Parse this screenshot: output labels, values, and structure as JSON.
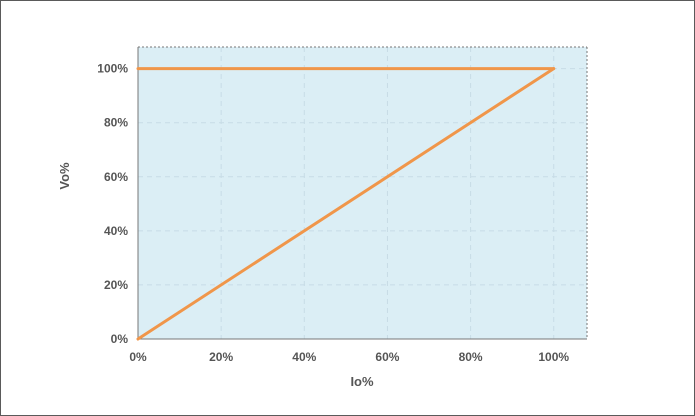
{
  "chart_data": {
    "type": "line",
    "title": "",
    "xlabel": "Io%",
    "ylabel": "Vo%",
    "xlim": [
      0,
      108
    ],
    "ylim": [
      0,
      108
    ],
    "x_ticks": [
      0,
      20,
      40,
      60,
      80,
      100
    ],
    "x_tick_labels": [
      "0%",
      "20%",
      "40%",
      "60%",
      "80%",
      "100%"
    ],
    "y_ticks": [
      0,
      20,
      40,
      60,
      80,
      100
    ],
    "y_tick_labels": [
      "0%",
      "20%",
      "40%",
      "60%",
      "80%",
      "100%"
    ],
    "grid": true,
    "legend": "none",
    "series": [
      {
        "x": [
          0,
          100
        ],
        "y": [
          100,
          100
        ],
        "color": "#f0964a"
      },
      {
        "x": [
          0,
          100
        ],
        "y": [
          0,
          100
        ],
        "color": "#f0964a"
      }
    ],
    "plot_background": "#dbeef5",
    "grid_color": "#c7dce6",
    "frame_color": "#777777",
    "text_color": "#555555"
  }
}
